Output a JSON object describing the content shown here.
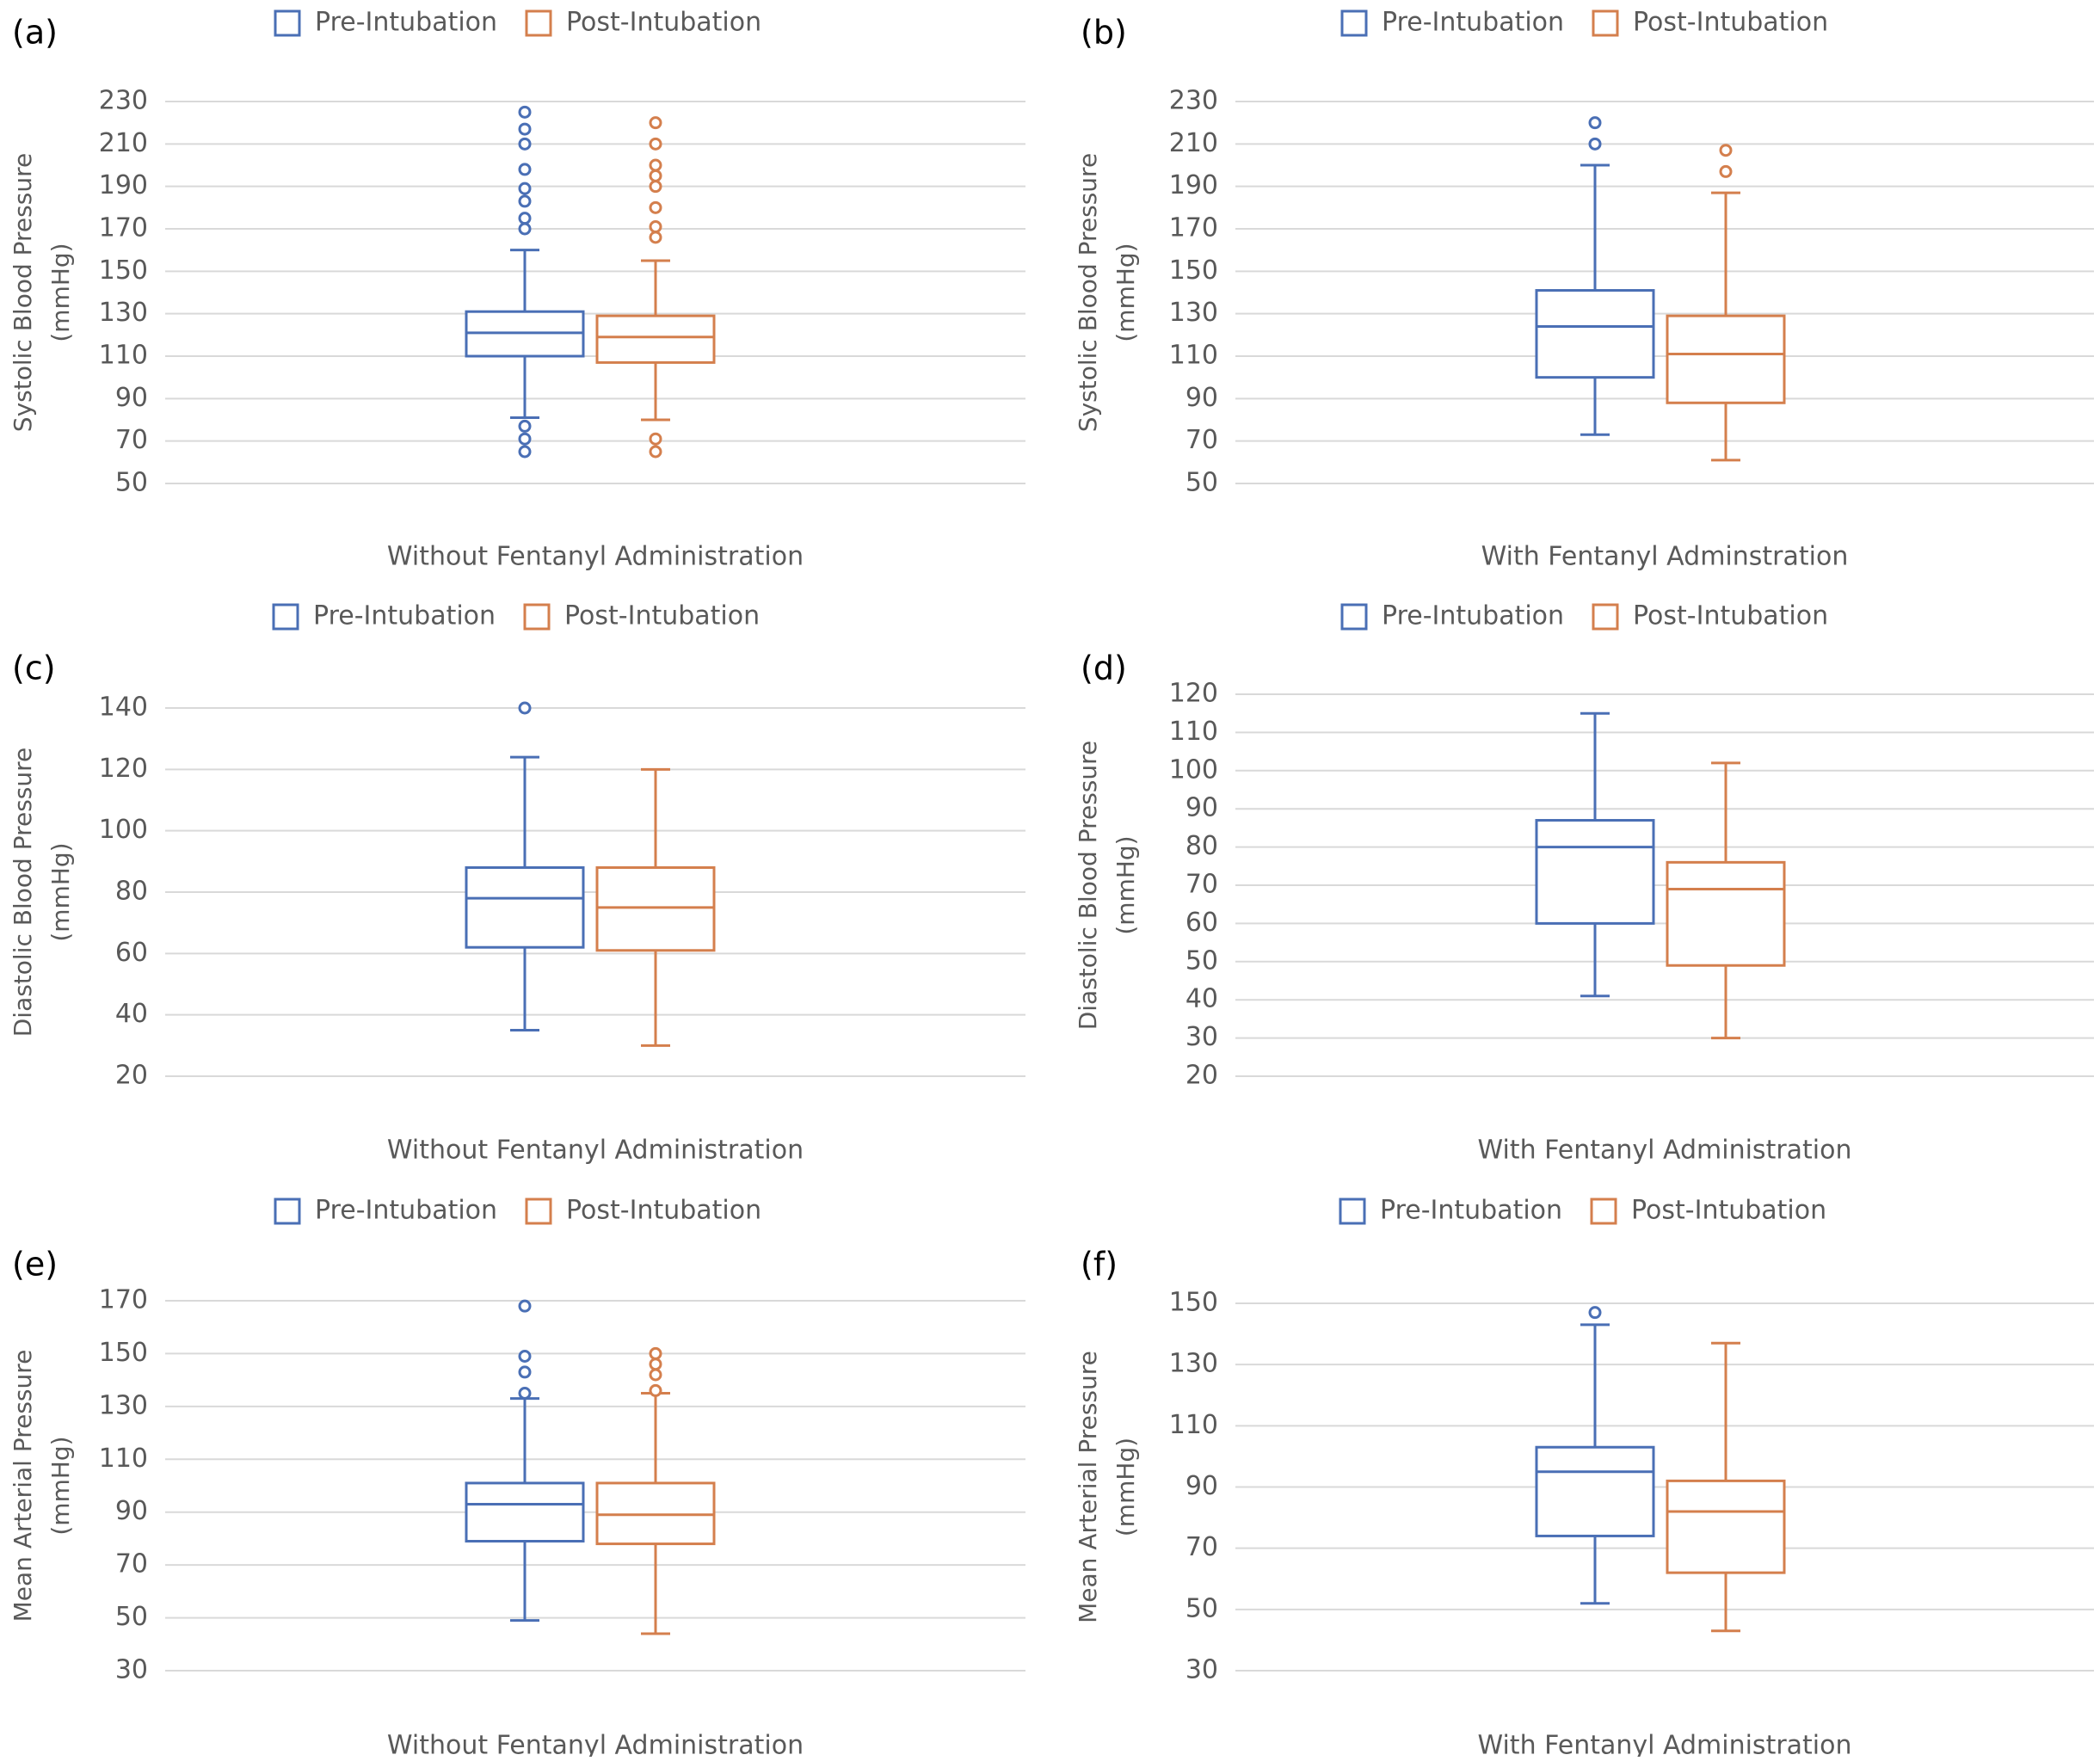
{
  "colors": {
    "pre": "#4a6fb5",
    "post": "#d47f4d",
    "grid": "#d9d9d9",
    "text": "#595959",
    "label": "#000000"
  },
  "legend": {
    "pre": "Pre-Intubation",
    "post": "Post-Intubation"
  },
  "chart_data": [
    {
      "type": "boxplot",
      "panel_label": "(a)",
      "ylabel_line1": "Systolic Blood Pressure",
      "ylabel_line2": "(mmHg)",
      "xlabel": "Without Fentanyl Administration",
      "ylim": [
        50,
        230
      ],
      "yticks": [
        50,
        70,
        90,
        110,
        130,
        150,
        170,
        190,
        210,
        230
      ],
      "series": [
        {
          "name": "Pre-Intubation",
          "min": 81,
          "q1": 110,
          "median": 121,
          "q3": 131,
          "max": 160,
          "outliers": [
            225,
            217,
            210,
            198,
            189,
            183,
            175,
            170,
            77,
            71,
            65
          ]
        },
        {
          "name": "Post-Intubation",
          "min": 80,
          "q1": 107,
          "median": 119,
          "q3": 129,
          "max": 155,
          "outliers": [
            220,
            210,
            200,
            195,
            190,
            180,
            171,
            166,
            71,
            65
          ]
        }
      ]
    },
    {
      "type": "boxplot",
      "panel_label": "(b)",
      "ylabel_line1": "Systolic Blood Pressure",
      "ylabel_line2": "(mmHg)",
      "xlabel": "With Fentanyl Adminstration",
      "ylim": [
        50,
        230
      ],
      "yticks": [
        50,
        70,
        90,
        110,
        130,
        150,
        170,
        190,
        210,
        230
      ],
      "series": [
        {
          "name": "Pre-Intubation",
          "min": 73,
          "q1": 100,
          "median": 124,
          "q3": 141,
          "max": 200,
          "outliers": [
            220,
            210
          ]
        },
        {
          "name": "Post-Intubation",
          "min": 61,
          "q1": 88,
          "median": 111,
          "q3": 129,
          "max": 187,
          "outliers": [
            207,
            197
          ]
        }
      ]
    },
    {
      "type": "boxplot",
      "panel_label": "(c)",
      "ylabel_line1": "Diastolic Blood Pressure",
      "ylabel_line2": "(mmHg)",
      "xlabel": "Without Fentanyl Administration",
      "ylim": [
        20,
        140
      ],
      "yticks": [
        20,
        40,
        60,
        80,
        100,
        120,
        140
      ],
      "series": [
        {
          "name": "Pre-Intubation",
          "min": 35,
          "q1": 62,
          "median": 78,
          "q3": 88,
          "max": 124,
          "outliers": [
            140
          ]
        },
        {
          "name": "Post-Intubation",
          "min": 30,
          "q1": 61,
          "median": 75,
          "q3": 88,
          "max": 120,
          "outliers": []
        }
      ]
    },
    {
      "type": "boxplot",
      "panel_label": "(d)",
      "ylabel_line1": "Diastolic Blood Pressure",
      "ylabel_line2": "(mmHg)",
      "xlabel": "With Fentanyl Administration",
      "ylim": [
        20,
        120
      ],
      "yticks": [
        20,
        30,
        40,
        50,
        60,
        70,
        80,
        90,
        100,
        110,
        120
      ],
      "series": [
        {
          "name": "Pre-Intubation",
          "min": 41,
          "q1": 60,
          "median": 80,
          "q3": 87,
          "max": 115,
          "outliers": []
        },
        {
          "name": "Post-Intubation",
          "min": 30,
          "q1": 49,
          "median": 69,
          "q3": 76,
          "max": 102,
          "outliers": []
        }
      ]
    },
    {
      "type": "boxplot",
      "panel_label": "(e)",
      "ylabel_line1": "Mean Arterial Pressure",
      "ylabel_line2": "(mmHg)",
      "xlabel": "Without Fentanyl Administration",
      "ylim": [
        30,
        170
      ],
      "yticks": [
        30,
        50,
        70,
        90,
        110,
        130,
        150,
        170
      ],
      "series": [
        {
          "name": "Pre-Intubation",
          "min": 49,
          "q1": 79,
          "median": 93,
          "q3": 101,
          "max": 133,
          "outliers": [
            168,
            149,
            143,
            135
          ]
        },
        {
          "name": "Post-Intubation",
          "min": 44,
          "q1": 78,
          "median": 89,
          "q3": 101,
          "max": 135,
          "outliers": [
            150,
            146,
            142,
            136
          ]
        }
      ]
    },
    {
      "type": "boxplot",
      "panel_label": "(f)",
      "ylabel_line1": "Mean Arterial Pressure",
      "ylabel_line2": "(mmHg)",
      "xlabel": "With Fentanyl Administration",
      "ylim": [
        30,
        150
      ],
      "yticks": [
        30,
        50,
        70,
        90,
        110,
        130,
        150
      ],
      "series": [
        {
          "name": "Pre-Intubation",
          "min": 52,
          "q1": 74,
          "median": 95,
          "q3": 103,
          "max": 143,
          "outliers": [
            147
          ]
        },
        {
          "name": "Post-Intubation",
          "min": 43,
          "q1": 62,
          "median": 82,
          "q3": 92,
          "max": 137,
          "outliers": []
        }
      ]
    }
  ]
}
